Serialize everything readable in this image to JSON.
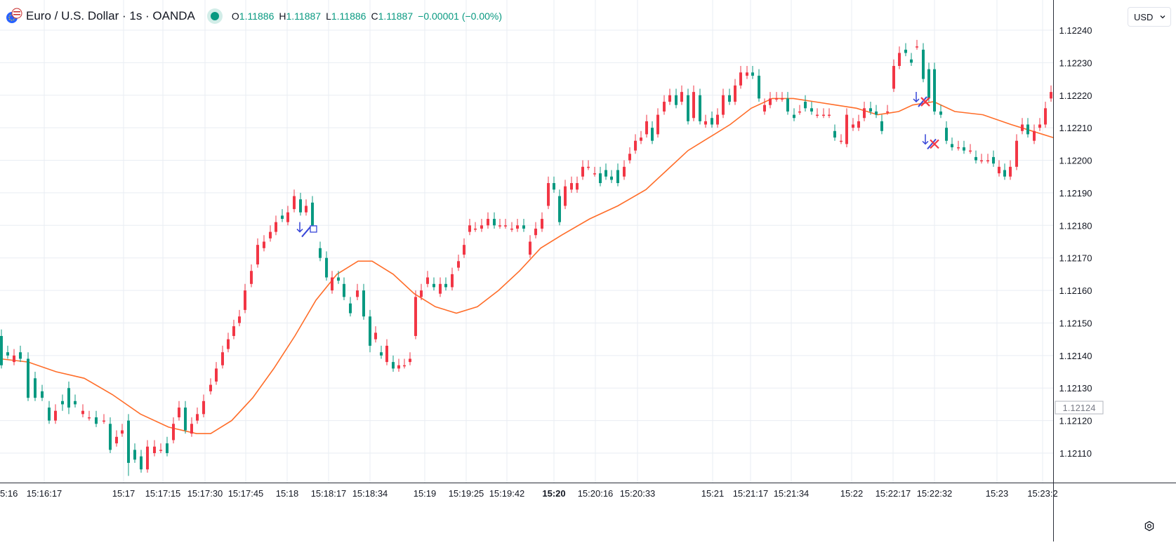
{
  "header": {
    "title": "Euro / U.S. Dollar · 1s · OANDA",
    "ohlc": [
      {
        "k": "O",
        "v": "1.11886"
      },
      {
        "k": "H",
        "v": "1.11887"
      },
      {
        "k": "L",
        "v": "1.11886"
      },
      {
        "k": "C",
        "v": "1.11887"
      }
    ],
    "change": "−0.00001 (−0.00%)"
  },
  "currency_selector": {
    "label": "USD"
  },
  "icons": {
    "symbol": "eurusd-flag-icon",
    "currency_arrow": "chevron-down-icon",
    "settings": "gear-icon"
  },
  "colors": {
    "up": "#f23645",
    "down": "#089981",
    "ma": "#ff6d29",
    "marker": "#3746d8",
    "cross": "#f23645",
    "grid": "#e9edf3"
  },
  "chart_data": {
    "type": "candlestick",
    "title": "",
    "xlabel": "",
    "ylabel": "",
    "ylim": [
      1.12104,
      1.12243
    ],
    "grid": true,
    "price_label": "1.12124",
    "y_ticks": [
      "1.12240",
      "1.12230",
      "1.12220",
      "1.12210",
      "1.12200",
      "1.12190",
      "1.12180",
      "1.12170",
      "1.12160",
      "1.12150",
      "1.12140",
      "1.12130",
      "1.12120",
      "1.12110"
    ],
    "x_ticks": [
      "5:16",
      "15:16:17",
      "15:17",
      "15:17:15",
      "15:17:30",
      "15:17:45",
      "15:18",
      "15:18:17",
      "15:18:34",
      "15:19",
      "15:19:25",
      "15:19:42",
      "15:20",
      "15:20:16",
      "15:20:33",
      "15:21",
      "15:21:17",
      "15:21:34",
      "15:22",
      "15:22:17",
      "15:22:32",
      "15:23",
      "15:23:2"
    ],
    "x_tick_bold": "15:20",
    "candles": [
      [
        0,
        1.12146,
        1.12137,
        1.12139
      ],
      [
        9,
        1.12141,
        1.1214,
        1.12141
      ],
      [
        18,
        1.12138,
        1.1214,
        1.1214
      ],
      [
        27,
        1.12141,
        1.12139,
        1.12139
      ],
      [
        38,
        1.12139,
        1.12127,
        1.12129
      ],
      [
        48,
        1.12133,
        1.12127,
        1.12131
      ],
      [
        58,
        1.12129,
        1.12127,
        1.12127
      ],
      [
        68,
        1.12124,
        1.1212,
        1.12122
      ],
      [
        77,
        1.1212,
        1.12123,
        1.12121
      ],
      [
        87,
        1.12126,
        1.12125,
        1.12124
      ],
      [
        96,
        1.1213,
        1.12124,
        1.12123
      ],
      [
        105,
        1.12126,
        1.12125,
        1.12125
      ],
      [
        116,
        1.12122,
        1.12123,
        1.12123
      ],
      [
        125,
        1.12121,
        1.12121,
        1.12121
      ],
      [
        135,
        1.12121,
        1.12119,
        1.1212
      ],
      [
        146,
        1.1212,
        1.1212,
        1.1212
      ],
      [
        155,
        1.12119,
        1.12111,
        1.12111
      ],
      [
        164,
        1.12113,
        1.12115,
        1.12115
      ],
      [
        172,
        1.12116,
        1.12117,
        1.12116
      ],
      [
        181,
        1.1212,
        1.12107,
        1.12104
      ],
      [
        190,
        1.12111,
        1.12108,
        1.12108
      ],
      [
        199,
        1.12109,
        1.12105,
        1.12108
      ],
      [
        208,
        1.12105,
        1.12112,
        1.12112
      ],
      [
        218,
        1.1211,
        1.12112,
        1.12112
      ],
      [
        227,
        1.12111,
        1.12111,
        1.12111
      ],
      [
        236,
        1.12113,
        1.1211,
        1.12112
      ],
      [
        245,
        1.12114,
        1.12119,
        1.12119
      ],
      [
        253,
        1.12121,
        1.12124,
        1.12124
      ],
      [
        262,
        1.12124,
        1.12117,
        1.1212
      ],
      [
        271,
        1.12116,
        1.12119,
        1.12119
      ],
      [
        279,
        1.1212,
        1.12122,
        1.12122
      ],
      [
        288,
        1.12122,
        1.12126,
        1.12126
      ],
      [
        298,
        1.12129,
        1.12131,
        1.12131
      ],
      [
        306,
        1.12132,
        1.12136,
        1.12136
      ],
      [
        315,
        1.12137,
        1.12141,
        1.12141
      ],
      [
        323,
        1.12142,
        1.12145,
        1.12145
      ],
      [
        331,
        1.12146,
        1.12149,
        1.12149
      ],
      [
        339,
        1.1215,
        1.12152,
        1.12152
      ],
      [
        347,
        1.12154,
        1.1216,
        1.1216
      ],
      [
        356,
        1.12162,
        1.12166,
        1.12166
      ],
      [
        365,
        1.12168,
        1.12174,
        1.12174
      ],
      [
        374,
        1.12173,
        1.12175,
        1.12175
      ],
      [
        383,
        1.12176,
        1.12178,
        1.12178
      ],
      [
        391,
        1.12178,
        1.12181,
        1.12181
      ],
      [
        400,
        1.12183,
        1.12182,
        1.12182
      ],
      [
        408,
        1.12181,
        1.12184,
        1.12184
      ],
      [
        417,
        1.12185,
        1.12189,
        1.12189
      ],
      [
        426,
        1.12188,
        1.12184,
        1.12184
      ],
      [
        434,
        1.12184,
        1.12186,
        1.12186
      ],
      [
        443,
        1.12187,
        1.1218,
        1.1218
      ],
      [
        454,
        1.12173,
        1.1217,
        1.12171
      ],
      [
        463,
        1.1217,
        1.12164,
        1.12164
      ],
      [
        471,
        1.1216,
        1.12164,
        1.12164
      ],
      [
        480,
        1.12164,
        1.12163,
        1.12163
      ],
      [
        488,
        1.12162,
        1.12158,
        1.12158
      ],
      [
        497,
        1.12156,
        1.12153,
        1.12153
      ],
      [
        507,
        1.12158,
        1.1216,
        1.1216
      ],
      [
        516,
        1.1216,
        1.12152,
        1.12152
      ],
      [
        525,
        1.12152,
        1.12143,
        1.12142
      ],
      [
        533,
        1.12145,
        1.12147,
        1.12146
      ],
      [
        541,
        1.12141,
        1.1214,
        1.1214
      ],
      [
        549,
        1.12138,
        1.12143,
        1.12143
      ],
      [
        558,
        1.12138,
        1.12136,
        1.12136
      ],
      [
        566,
        1.12136,
        1.12137,
        1.12137
      ],
      [
        574,
        1.12137,
        1.12137,
        1.12137
      ],
      [
        582,
        1.12138,
        1.12139,
        1.1214
      ],
      [
        590,
        1.12146,
        1.12158,
        1.12158
      ],
      [
        598,
        1.12158,
        1.1216,
        1.1216
      ],
      [
        607,
        1.12162,
        1.12164,
        1.12164
      ],
      [
        616,
        1.12162,
        1.12161,
        1.12161
      ],
      [
        625,
        1.12159,
        1.12162,
        1.12162
      ],
      [
        633,
        1.12162,
        1.12161,
        1.12161
      ],
      [
        642,
        1.12161,
        1.12165,
        1.12165
      ],
      [
        651,
        1.12167,
        1.12169,
        1.12169
      ],
      [
        659,
        1.12171,
        1.12174,
        1.12174
      ],
      [
        667,
        1.12178,
        1.1218,
        1.1218
      ],
      [
        675,
        1.12179,
        1.12179,
        1.12179
      ],
      [
        684,
        1.12179,
        1.1218,
        1.1218
      ],
      [
        693,
        1.1218,
        1.12182,
        1.12182
      ],
      [
        702,
        1.12182,
        1.1218,
        1.1218
      ],
      [
        710,
        1.1218,
        1.1218,
        1.1218
      ],
      [
        718,
        1.1218,
        1.1218,
        1.1218
      ],
      [
        727,
        1.12179,
        1.12179,
        1.12179
      ],
      [
        735,
        1.12179,
        1.1218,
        1.1218
      ],
      [
        744,
        1.1218,
        1.12179,
        1.12179
      ],
      [
        753,
        1.12171,
        1.12175,
        1.12175
      ],
      [
        761,
        1.12177,
        1.12179,
        1.12179
      ],
      [
        770,
        1.12179,
        1.12182,
        1.12182
      ],
      [
        779,
        1.12186,
        1.12193,
        1.12193
      ],
      [
        787,
        1.12193,
        1.12191,
        1.12191
      ],
      [
        795,
        1.12189,
        1.12181,
        1.12181
      ],
      [
        803,
        1.12186,
        1.12192,
        1.12192
      ],
      [
        812,
        1.12191,
        1.12193,
        1.12193
      ],
      [
        820,
        1.12191,
        1.12193,
        1.12193
      ],
      [
        828,
        1.12195,
        1.12198,
        1.12198
      ],
      [
        836,
        1.12198,
        1.12198,
        1.12198
      ],
      [
        845,
        1.12196,
        1.12196,
        1.12196
      ],
      [
        853,
        1.12196,
        1.12193,
        1.12195
      ],
      [
        861,
        1.12197,
        1.12195,
        1.12195
      ],
      [
        869,
        1.12195,
        1.12194,
        1.12195
      ],
      [
        878,
        1.12197,
        1.12193,
        1.12193
      ],
      [
        887,
        1.12195,
        1.12198,
        1.12198
      ],
      [
        895,
        1.122,
        1.12202,
        1.12202
      ],
      [
        903,
        1.12203,
        1.12206,
        1.12206
      ],
      [
        911,
        1.12206,
        1.12207,
        1.12207
      ],
      [
        919,
        1.12208,
        1.12212,
        1.12212
      ],
      [
        927,
        1.1221,
        1.12206,
        1.12206
      ],
      [
        935,
        1.12208,
        1.12214,
        1.12214
      ],
      [
        944,
        1.12215,
        1.12218,
        1.12218
      ],
      [
        952,
        1.12218,
        1.1222,
        1.1222
      ],
      [
        961,
        1.1222,
        1.12217,
        1.12217
      ],
      [
        969,
        1.12218,
        1.12221,
        1.12221
      ],
      [
        978,
        1.1222,
        1.12212,
        1.12212
      ],
      [
        986,
        1.12213,
        1.12221,
        1.12221
      ],
      [
        995,
        1.1222,
        1.12212,
        1.12212
      ],
      [
        1003,
        1.12211,
        1.12212,
        1.12212
      ],
      [
        1012,
        1.12213,
        1.12211,
        1.12211
      ],
      [
        1020,
        1.12211,
        1.12214,
        1.12214
      ],
      [
        1028,
        1.12214,
        1.1222,
        1.1222
      ],
      [
        1037,
        1.1222,
        1.12218,
        1.12218
      ],
      [
        1045,
        1.12218,
        1.12223,
        1.12223
      ],
      [
        1053,
        1.12223,
        1.12227,
        1.12227
      ],
      [
        1062,
        1.12226,
        1.12227,
        1.12227
      ],
      [
        1070,
        1.12227,
        1.12226,
        1.12226
      ],
      [
        1079,
        1.12226,
        1.12219,
        1.12219
      ],
      [
        1087,
        1.12215,
        1.12217,
        1.12217
      ],
      [
        1095,
        1.12217,
        1.12219,
        1.12219
      ],
      [
        1104,
        1.12219,
        1.12219,
        1.12219
      ],
      [
        1112,
        1.12219,
        1.12219,
        1.12219
      ],
      [
        1120,
        1.12219,
        1.12215,
        1.12215
      ],
      [
        1129,
        1.12214,
        1.12213,
        1.12213
      ],
      [
        1137,
        1.12215,
        1.12215,
        1.12215
      ],
      [
        1145,
        1.12218,
        1.12216,
        1.12216
      ],
      [
        1154,
        1.12216,
        1.12215,
        1.12215
      ],
      [
        1162,
        1.12214,
        1.12214,
        1.12214
      ],
      [
        1171,
        1.12214,
        1.12214,
        1.12214
      ],
      [
        1179,
        1.12214,
        1.12214,
        1.12214
      ],
      [
        1187,
        1.12209,
        1.12207,
        1.12207
      ],
      [
        1196,
        1.12206,
        1.12206,
        1.12206
      ],
      [
        1204,
        1.12205,
        1.12214,
        1.12214
      ],
      [
        1213,
        1.1221,
        1.12211,
        1.12211
      ],
      [
        1221,
        1.1221,
        1.12212,
        1.12212
      ],
      [
        1229,
        1.12213,
        1.12216,
        1.12216
      ],
      [
        1238,
        1.12216,
        1.12215,
        1.12215
      ],
      [
        1246,
        1.12215,
        1.12214,
        1.12214
      ],
      [
        1254,
        1.12212,
        1.12209,
        1.12209
      ],
      [
        1262,
        1.12215,
        1.12215,
        1.12215
      ],
      [
        1271,
        1.12222,
        1.12229,
        1.12229
      ],
      [
        1279,
        1.12229,
        1.12233,
        1.12233
      ],
      [
        1288,
        1.12234,
        1.12233,
        1.12233
      ],
      [
        1296,
        1.12231,
        1.1223,
        1.1223
      ],
      [
        1304,
        1.12235,
        1.12235,
        1.12235
      ],
      [
        1313,
        1.12234,
        1.12225,
        1.12225
      ],
      [
        1321,
        1.12228,
        1.12219,
        1.12219
      ],
      [
        1329,
        1.12228,
        1.12215,
        1.12215
      ],
      [
        1338,
        1.12215,
        1.12214,
        1.12214
      ],
      [
        1346,
        1.1221,
        1.12206,
        1.12206
      ],
      [
        1354,
        1.12205,
        1.12204,
        1.12204
      ],
      [
        1363,
        1.12204,
        1.12204,
        1.12204
      ],
      [
        1371,
        1.12204,
        1.12203,
        1.12203
      ],
      [
        1380,
        1.12203,
        1.12203,
        1.12203
      ],
      [
        1388,
        1.12201,
        1.122,
        1.122
      ],
      [
        1396,
        1.122,
        1.122,
        1.122
      ],
      [
        1405,
        1.122,
        1.122,
        1.122
      ],
      [
        1413,
        1.12201,
        1.12199,
        1.12199
      ],
      [
        1421,
        1.12196,
        1.12198,
        1.12198
      ],
      [
        1429,
        1.12197,
        1.12195,
        1.12195
      ],
      [
        1437,
        1.12195,
        1.12198,
        1.12198
      ],
      [
        1446,
        1.12198,
        1.12206,
        1.12206
      ],
      [
        1454,
        1.12209,
        1.12211,
        1.12211
      ],
      [
        1462,
        1.12211,
        1.12208,
        1.12208
      ],
      [
        1471,
        1.12206,
        1.12209,
        1.12209
      ],
      [
        1479,
        1.1221,
        1.12211,
        1.12211
      ],
      [
        1487,
        1.12211,
        1.12216,
        1.12216
      ],
      [
        1495,
        1.12219,
        1.12221,
        1.12221
      ]
    ],
    "ma": [
      [
        0,
        1.12139
      ],
      [
        40,
        1.12138
      ],
      [
        80,
        1.12135
      ],
      [
        120,
        1.12133
      ],
      [
        160,
        1.12128
      ],
      [
        200,
        1.12122
      ],
      [
        240,
        1.12118
      ],
      [
        280,
        1.12116
      ],
      [
        300,
        1.12116
      ],
      [
        330,
        1.1212
      ],
      [
        360,
        1.12127
      ],
      [
        390,
        1.12136
      ],
      [
        420,
        1.12146
      ],
      [
        450,
        1.12157
      ],
      [
        480,
        1.12165
      ],
      [
        510,
        1.12169
      ],
      [
        530,
        1.12169
      ],
      [
        560,
        1.12165
      ],
      [
        590,
        1.12159
      ],
      [
        620,
        1.12155
      ],
      [
        650,
        1.12153
      ],
      [
        680,
        1.12155
      ],
      [
        710,
        1.1216
      ],
      [
        740,
        1.12166
      ],
      [
        770,
        1.12173
      ],
      [
        800,
        1.12177
      ],
      [
        840,
        1.12182
      ],
      [
        880,
        1.12186
      ],
      [
        920,
        1.12191
      ],
      [
        950,
        1.12197
      ],
      [
        980,
        1.12203
      ],
      [
        1010,
        1.12207
      ],
      [
        1040,
        1.12211
      ],
      [
        1070,
        1.12216
      ],
      [
        1100,
        1.12219
      ],
      [
        1130,
        1.12219
      ],
      [
        1160,
        1.12218
      ],
      [
        1190,
        1.12217
      ],
      [
        1220,
        1.12216
      ],
      [
        1250,
        1.12214
      ],
      [
        1280,
        1.12215
      ],
      [
        1300,
        1.12217
      ],
      [
        1330,
        1.12218
      ],
      [
        1360,
        1.12215
      ],
      [
        1400,
        1.12214
      ],
      [
        1440,
        1.12211
      ],
      [
        1470,
        1.12209
      ],
      [
        1500,
        1.12207
      ]
    ],
    "markers": [
      {
        "type": "arrow-marker",
        "x": 427,
        "price": 1.12178,
        "label": ""
      },
      {
        "type": "square-marker",
        "x": 446,
        "price": 1.12179
      },
      {
        "type": "arrow-marker",
        "x": 1305,
        "price": 1.12218
      },
      {
        "type": "cross-marker",
        "x": 1318,
        "price": 1.12218
      },
      {
        "type": "arrow-marker",
        "x": 1318,
        "price": 1.12205
      },
      {
        "type": "cross-marker",
        "x": 1331,
        "price": 1.12205
      }
    ]
  }
}
